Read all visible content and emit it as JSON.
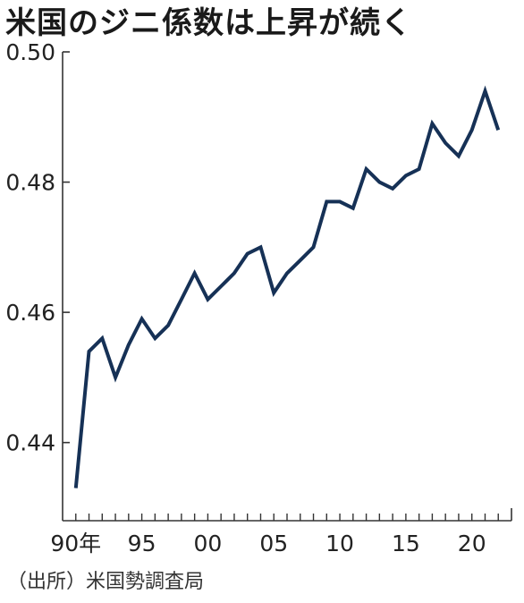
{
  "chart_data": {
    "type": "line",
    "title": "米国のジニ係数は上昇が続く",
    "source": "（出所）米国勢調査局",
    "x_tick_labels": [
      "90年",
      "95",
      "00",
      "05",
      "10",
      "15",
      "20"
    ],
    "y_tick_labels": [
      "0.50",
      "0.48",
      "0.46",
      "0.44"
    ],
    "ylim": [
      0.428,
      0.5
    ],
    "xlim": [
      1989,
      2023
    ],
    "grid": false,
    "line_color": "#163156",
    "series": [
      {
        "x": [
          1990,
          1991,
          1992,
          1993,
          1994,
          1995,
          1996,
          1997,
          1998,
          1999,
          2000,
          2001,
          2002,
          2003,
          2004,
          2005,
          2006,
          2007,
          2008,
          2009,
          2010,
          2011,
          2012,
          2013,
          2014,
          2015,
          2016,
          2017,
          2018,
          2019,
          2020,
          2021,
          2022
        ],
        "values": [
          0.433,
          0.454,
          0.456,
          0.45,
          0.455,
          0.459,
          0.456,
          0.458,
          0.462,
          0.466,
          0.462,
          0.464,
          0.466,
          0.469,
          0.47,
          0.463,
          0.466,
          0.468,
          0.47,
          0.477,
          0.477,
          0.476,
          0.482,
          0.48,
          0.479,
          0.481,
          0.482,
          0.489,
          0.486,
          0.484,
          0.488,
          0.494,
          0.488
        ]
      }
    ]
  }
}
